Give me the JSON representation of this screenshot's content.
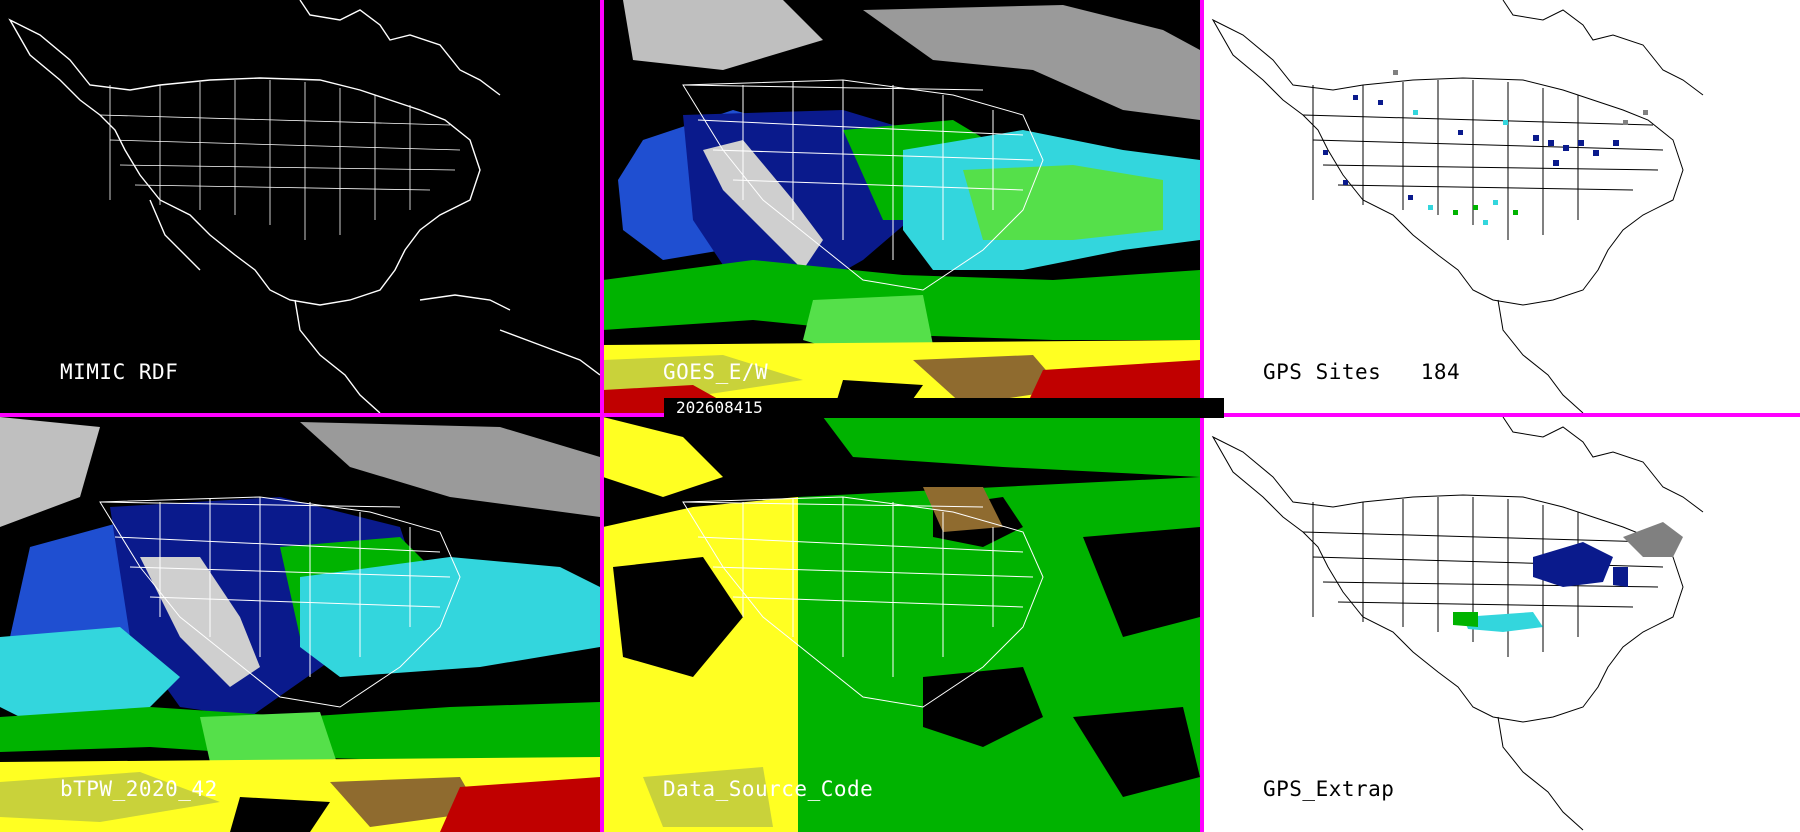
{
  "panels": [
    {
      "id": "mimic-rdf",
      "title": "MIMIC RDF",
      "theme": "dark"
    },
    {
      "id": "goes-ew",
      "title": "GOES_E/W",
      "theme": "imagery"
    },
    {
      "id": "gps-sites",
      "title": "GPS Sites   184",
      "theme": "light"
    },
    {
      "id": "btpw",
      "title": "bTPW_2020_42",
      "theme": "imagery"
    },
    {
      "id": "data-source-code",
      "title": "Data_Source_Code",
      "theme": "source"
    },
    {
      "id": "gps-extrap",
      "title": "GPS_Extrap",
      "theme": "light"
    }
  ],
  "timestamp": "202608415",
  "colors": {
    "divider": "#ff00ff",
    "dark_bg": "#000000",
    "light_bg": "#ffffff",
    "scale": [
      "#cfcfcf",
      "#0a1a8c",
      "#1f4fd1",
      "#33d6dd",
      "#00b300",
      "#55e04a",
      "#c9d23a",
      "#ffff22",
      "#8f6b2f",
      "#c00000"
    ]
  }
}
